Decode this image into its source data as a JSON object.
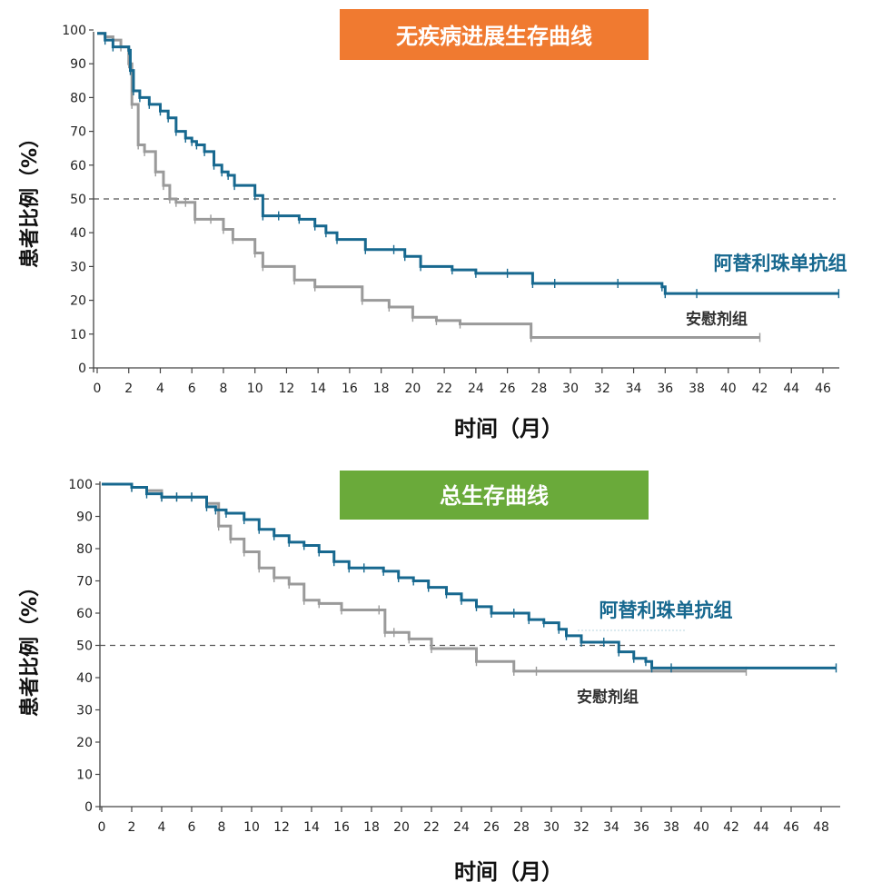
{
  "colors": {
    "treatment": "#17688f",
    "placebo": "#9a9a9a",
    "banner_pfs": "#f07a30",
    "banner_os": "#6aaa3a",
    "axis": "#444444"
  },
  "chart_data": [
    {
      "type": "line",
      "title": "无疾病进展生存曲线",
      "xlabel": "时间（月）",
      "ylabel": "患者比例（%）",
      "xlim": [
        0,
        48
      ],
      "ylim": [
        0,
        100
      ],
      "xticks": [
        0,
        2,
        4,
        6,
        8,
        10,
        12,
        14,
        16,
        18,
        20,
        22,
        24,
        26,
        28,
        30,
        32,
        34,
        36,
        38,
        40,
        42,
        44,
        46
      ],
      "yticks": [
        0,
        10,
        20,
        30,
        40,
        50,
        60,
        70,
        80,
        90,
        100
      ],
      "reference_line": 50,
      "series": [
        {
          "name": "阿替利珠单抗组",
          "x": [
            0,
            0.5,
            1,
            2,
            2.1,
            2.3,
            2.7,
            3.3,
            4,
            4.5,
            5,
            5.6,
            6,
            6.3,
            6.8,
            7.4,
            7.9,
            8.3,
            8.7,
            10,
            10.5,
            11.5,
            12.8,
            13.8,
            14.5,
            15.2,
            17,
            18.8,
            19.5,
            20.5,
            22.5,
            24,
            26,
            27.6,
            29,
            33,
            35.8,
            36,
            38,
            47
          ],
          "y": [
            99,
            97,
            95,
            94,
            88,
            82,
            80,
            78,
            76,
            74,
            70,
            68,
            67,
            66,
            64,
            60,
            58,
            57,
            54,
            51,
            45,
            45,
            44,
            42,
            40,
            38,
            35,
            35,
            33,
            30,
            29,
            28,
            28,
            25,
            25,
            25,
            24,
            22,
            22,
            22
          ]
        },
        {
          "name": "安慰剂组",
          "x": [
            0,
            0.5,
            1,
            1.5,
            2,
            2.2,
            2.6,
            3,
            3.7,
            4.2,
            4.6,
            5,
            5.6,
            6.2,
            7.2,
            8,
            8.6,
            10,
            10.5,
            12.5,
            13.8,
            16.8,
            18.5,
            20,
            21.5,
            23,
            27.5,
            42
          ],
          "y": [
            99,
            98,
            97,
            95,
            90,
            78,
            66,
            64,
            58,
            54,
            50,
            49,
            49,
            44,
            44,
            41,
            38,
            34,
            30,
            26,
            24,
            20,
            18,
            15,
            14,
            13,
            9,
            9
          ]
        }
      ]
    },
    {
      "type": "line",
      "title": "总生存曲线",
      "xlabel": "时间（月）",
      "ylabel": "患者比例（%）",
      "xlim": [
        0,
        49
      ],
      "ylim": [
        0,
        100
      ],
      "xticks": [
        0,
        2,
        4,
        6,
        8,
        10,
        12,
        14,
        16,
        18,
        20,
        22,
        24,
        26,
        28,
        30,
        32,
        34,
        36,
        38,
        40,
        42,
        44,
        46,
        48
      ],
      "yticks": [
        0,
        10,
        20,
        30,
        40,
        50,
        60,
        70,
        80,
        90,
        100
      ],
      "reference_line": 50,
      "series": [
        {
          "name": "阿替利珠单抗组",
          "x": [
            0,
            2,
            3,
            4,
            5,
            6,
            7,
            7.6,
            8.3,
            9.5,
            10.5,
            11.5,
            12.5,
            13.5,
            14.5,
            15.5,
            16.5,
            17.5,
            18.8,
            19.8,
            20.8,
            21.8,
            23,
            24,
            25,
            26,
            27.5,
            28.5,
            29.5,
            30.5,
            31,
            32,
            33.5,
            34.5,
            35.5,
            36.3,
            36.7,
            38,
            49
          ],
          "y": [
            100,
            99,
            97,
            96,
            96,
            96,
            93,
            92,
            91,
            89,
            86,
            84,
            82,
            81,
            79,
            76,
            74,
            74,
            73,
            71,
            70,
            68,
            66,
            64,
            62,
            60,
            60,
            58,
            57,
            55,
            53,
            51,
            51,
            48,
            46,
            45,
            43,
            43,
            43
          ]
        },
        {
          "name": "安慰剂组",
          "x": [
            0,
            2,
            3,
            4,
            5,
            6,
            7,
            7.8,
            8.6,
            9.5,
            10.5,
            11.5,
            12.5,
            13.5,
            14.5,
            16,
            18.5,
            18.9,
            19.5,
            20.5,
            22,
            25,
            27.5,
            29,
            43
          ],
          "y": [
            100,
            99,
            98,
            96,
            96,
            96,
            94,
            87,
            83,
            79,
            74,
            71,
            69,
            64,
            63,
            61,
            61,
            54,
            54,
            52,
            49,
            45,
            42,
            42,
            42
          ]
        }
      ]
    }
  ]
}
